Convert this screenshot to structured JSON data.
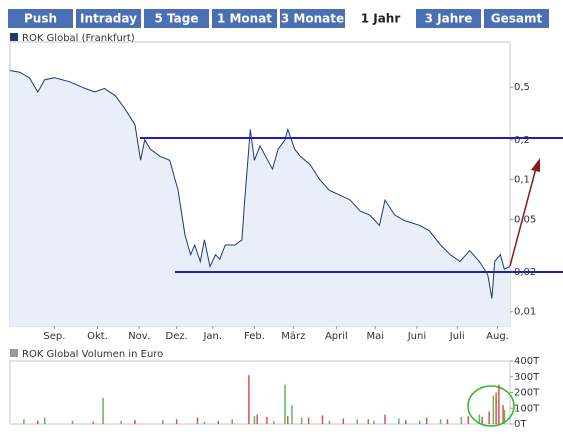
{
  "tabs": [
    "Push",
    "Intraday",
    "5 Tage",
    "1 Monat",
    "3 Monate",
    "1 Jahr",
    "3 Jahre",
    "Gesamt"
  ],
  "selected_tab": 5,
  "chart_data": [
    {
      "type": "line",
      "legend": "ROK Global (Frankfurt)",
      "color": "#1f3a6e",
      "fill": "#e9eff9",
      "log_scale": true,
      "x": [
        0,
        7,
        14,
        20,
        25,
        32,
        43,
        54,
        61,
        68,
        76,
        83,
        90,
        94,
        97,
        101,
        108,
        115,
        121,
        126,
        130,
        133,
        137,
        140,
        144,
        148,
        151,
        155,
        162,
        167,
        169,
        173,
        176,
        180,
        184,
        189,
        193,
        198,
        200,
        205,
        209,
        216,
        223,
        230,
        238,
        245,
        252,
        259,
        266,
        270,
        277,
        284,
        295,
        302,
        310,
        317,
        324,
        331,
        338,
        344,
        347,
        349,
        353,
        356,
        360
      ],
      "values": [
        0.67,
        0.65,
        0.59,
        0.46,
        0.57,
        0.59,
        0.55,
        0.49,
        0.46,
        0.49,
        0.43,
        0.34,
        0.26,
        0.14,
        0.2,
        0.17,
        0.15,
        0.14,
        0.083,
        0.038,
        0.027,
        0.032,
        0.024,
        0.035,
        0.022,
        0.027,
        0.025,
        0.032,
        0.032,
        0.035,
        0.07,
        0.24,
        0.14,
        0.18,
        0.15,
        0.12,
        0.17,
        0.2,
        0.24,
        0.17,
        0.15,
        0.13,
        0.1,
        0.083,
        0.076,
        0.07,
        0.058,
        0.054,
        0.045,
        0.07,
        0.054,
        0.049,
        0.045,
        0.041,
        0.032,
        0.027,
        0.024,
        0.029,
        0.024,
        0.019,
        0.0126,
        0.024,
        0.027,
        0.021,
        0.022
      ],
      "xlim": [
        0,
        360
      ],
      "ylim": [
        0.0078,
        1.1
      ],
      "xticks": [
        {
          "value": 32,
          "label": "Sep."
        },
        {
          "value": 63,
          "label": "Okt."
        },
        {
          "value": 93,
          "label": "Nov."
        },
        {
          "value": 120,
          "label": "Dez."
        },
        {
          "value": 146,
          "label": "Jan."
        },
        {
          "value": 176,
          "label": "Feb."
        },
        {
          "value": 204,
          "label": "März"
        },
        {
          "value": 235,
          "label": "April"
        },
        {
          "value": 263,
          "label": "Mai"
        },
        {
          "value": 293,
          "label": "Juni"
        },
        {
          "value": 322,
          "label": "Juli"
        },
        {
          "value": 351,
          "label": "Aug."
        }
      ],
      "yticks": [
        {
          "value": 0.5,
          "label": "0,5"
        },
        {
          "value": 0.2,
          "label": "0,2"
        },
        {
          "value": 0.1,
          "label": "0,1"
        },
        {
          "value": 0.05,
          "label": "0,05"
        },
        {
          "value": 0.02,
          "label": "0,02"
        },
        {
          "value": 0.01,
          "label": "0,01"
        }
      ]
    },
    {
      "type": "bar",
      "legend": "ROK Global Volumen in Euro",
      "series": [
        {
          "color": "#d9534f",
          "x": [
            20,
            60,
            90,
            120,
            135,
            150,
            172,
            178,
            185,
            200,
            215,
            225,
            240,
            258,
            270,
            285,
            300,
            315,
            330,
            340,
            345,
            350,
            352,
            355
          ],
          "values": [
            20,
            15,
            25,
            30,
            40,
            20,
            310,
            60,
            45,
            50,
            40,
            55,
            35,
            30,
            60,
            25,
            40,
            30,
            50,
            45,
            80,
            200,
            250,
            120
          ]
        },
        {
          "color": "#5cb85c",
          "x": [
            10,
            25,
            45,
            67,
            80,
            110,
            140,
            160,
            176,
            190,
            198,
            203,
            210,
            230,
            250,
            262,
            280,
            295,
            310,
            325,
            338,
            348,
            356
          ],
          "values": [
            30,
            40,
            20,
            165,
            20,
            25,
            15,
            30,
            50,
            20,
            250,
            120,
            40,
            20,
            30,
            20,
            35,
            20,
            30,
            45,
            60,
            180,
            90
          ]
        }
      ],
      "xlim": [
        0,
        360
      ],
      "ylim": [
        0,
        400
      ],
      "yticks": [
        {
          "value": 400,
          "label": "400T"
        },
        {
          "value": 300,
          "label": "300T"
        },
        {
          "value": 200,
          "label": "200T"
        },
        {
          "value": 100,
          "label": "100T"
        },
        {
          "value": 0,
          "label": "0T"
        }
      ]
    }
  ]
}
